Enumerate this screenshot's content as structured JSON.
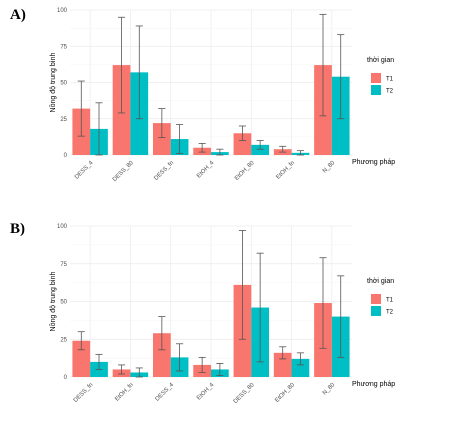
{
  "colors": {
    "T1": "#F8766D",
    "T2": "#00BFC4"
  },
  "chart_data": [
    {
      "type": "bar",
      "panel_label": "A)",
      "categories": [
        "DESS_4",
        "DESS_80",
        "DESS_fn",
        "EtOH_4",
        "EtOH_80",
        "EtOH_fn",
        "N_80"
      ],
      "series": [
        {
          "name": "T1",
          "values": [
            32,
            62,
            22,
            5,
            15,
            4,
            62
          ],
          "errors": [
            19,
            33,
            10,
            3,
            5,
            2,
            35
          ]
        },
        {
          "name": "T2",
          "values": [
            18,
            57,
            11,
            2,
            7,
            1.5,
            54
          ],
          "errors": [
            18,
            32,
            10,
            2,
            3,
            1.5,
            29
          ]
        }
      ],
      "xlabel": "Phương pháp",
      "ylabel": "Nồng độ trung bình",
      "ylim": [
        0,
        100
      ],
      "yticks": [
        0,
        25,
        50,
        75,
        100
      ],
      "legend_title": "thời gian",
      "legend_position": "right",
      "grid": true
    },
    {
      "type": "bar",
      "panel_label": "B)",
      "categories": [
        "DESS_fn",
        "EtOH_fn",
        "DESS_4",
        "EtOH_4",
        "DESS_80",
        "EtOH_80",
        "N_80"
      ],
      "series": [
        {
          "name": "T1",
          "values": [
            24,
            5,
            29,
            8,
            61,
            16,
            49
          ],
          "errors": [
            6,
            3,
            11,
            5,
            36,
            4,
            30
          ]
        },
        {
          "name": "T2",
          "values": [
            10,
            3,
            13,
            5,
            46,
            12,
            40
          ],
          "errors": [
            5,
            3,
            9,
            4,
            36,
            4,
            27
          ]
        }
      ],
      "xlabel": "Phương pháp",
      "ylabel": "Nồng độ trung bình",
      "ylim": [
        0,
        100
      ],
      "yticks": [
        0,
        25,
        50,
        75,
        100
      ],
      "legend_title": "thời gian",
      "legend_position": "right",
      "grid": true
    }
  ]
}
